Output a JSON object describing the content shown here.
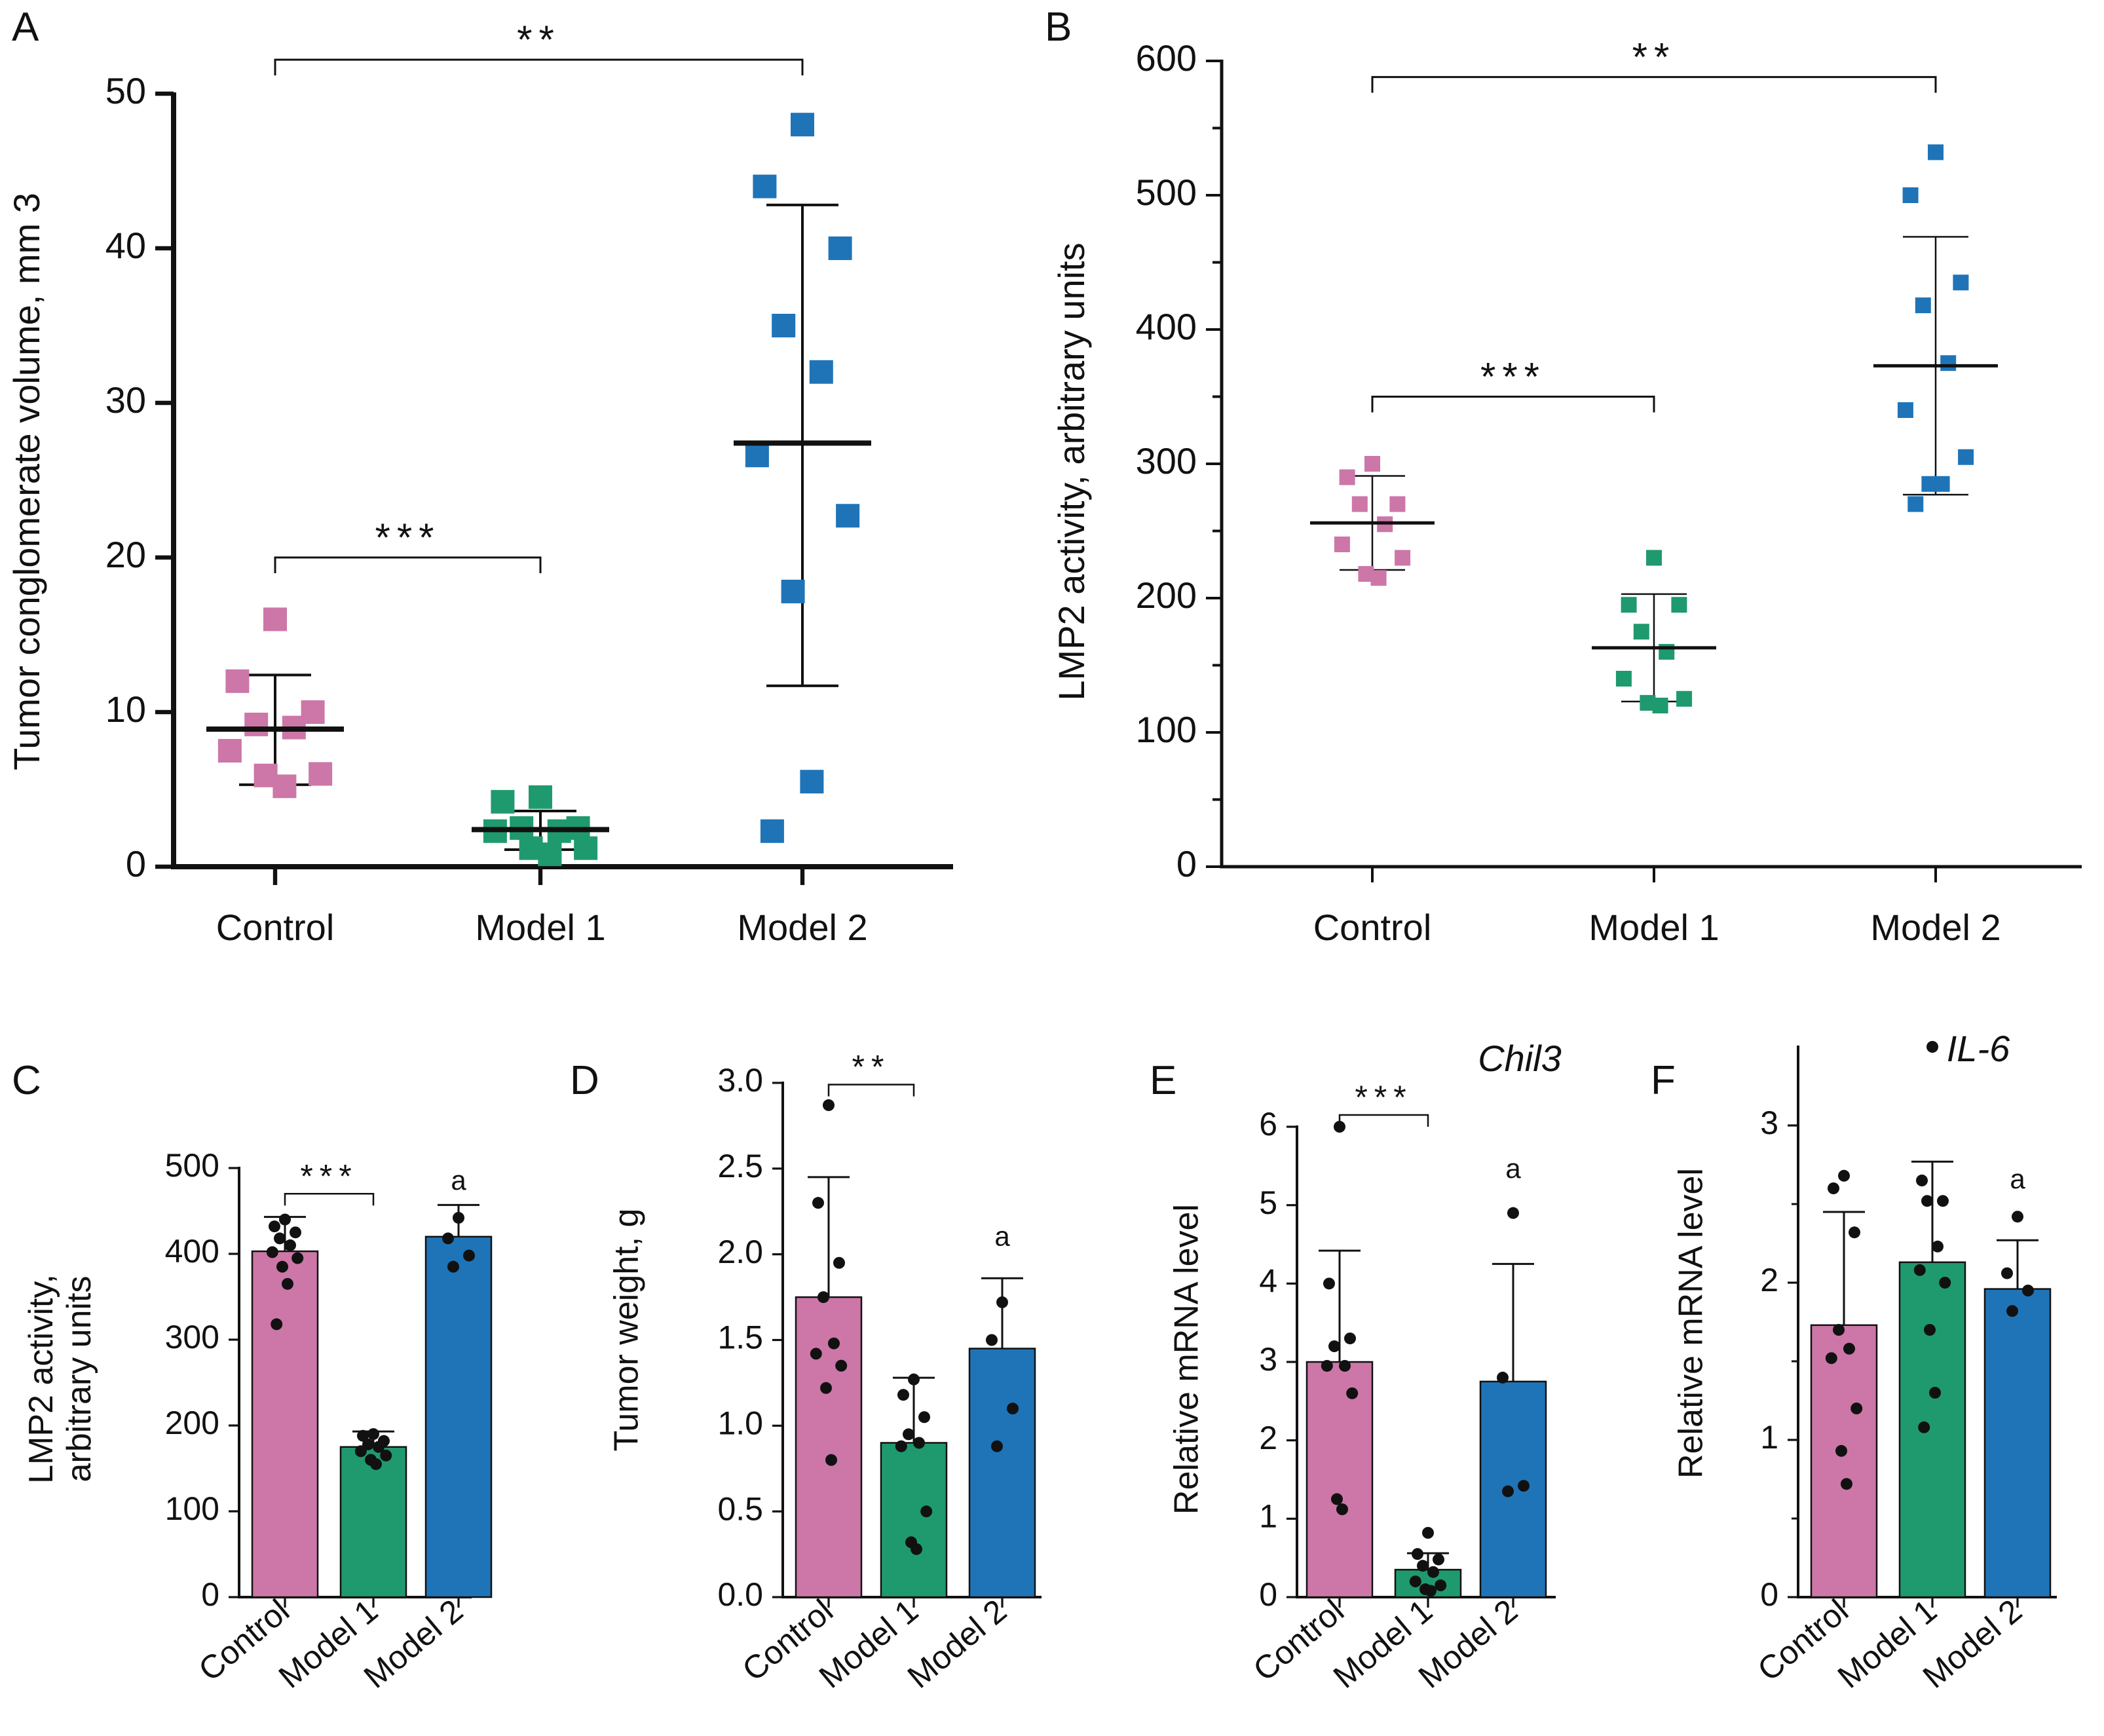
{
  "figure": {
    "colors": {
      "control": "#cc77a8",
      "model1": "#1f9a6e",
      "model2": "#1f74b8",
      "axis": "#111111"
    }
  },
  "chart_data": [
    {
      "id": "A",
      "panel_label": "A",
      "type": "scatter",
      "ylabel": "Tumor conglomerate volume, mm 3",
      "categories": [
        "Control",
        "Model 1",
        "Model 2"
      ],
      "ylim": [
        0,
        50
      ],
      "yticks": [
        0,
        10,
        20,
        30,
        40,
        50
      ],
      "ytick_labels": [
        "0",
        "10",
        "20",
        "30",
        "40",
        "50"
      ],
      "series": [
        {
          "name": "Control",
          "points": [
            16,
            12,
            10,
            9.2,
            9,
            7.5,
            6,
            5.9,
            5.2
          ],
          "mean": 8.9,
          "err_low": 5.3,
          "err_high": 12.4
        },
        {
          "name": "Model 1",
          "points": [
            4.5,
            4.2,
            2.5,
            2.5,
            2.3,
            2.3,
            1.2,
            1.2,
            0.8
          ],
          "mean": 2.4,
          "err_low": 1.1,
          "err_high": 3.6
        },
        {
          "name": "Model 2",
          "points": [
            48,
            44,
            40,
            35,
            32,
            26.6,
            22.7,
            17.8,
            5.5,
            2.3
          ],
          "mean": 27.4,
          "err_low": 11.7,
          "err_high": 42.8
        }
      ],
      "brackets": [
        {
          "from": 0,
          "to": 2,
          "level": 52.2,
          "label": "**"
        },
        {
          "from": 0,
          "to": 1,
          "level": 20,
          "label": "***"
        }
      ]
    },
    {
      "id": "B",
      "panel_label": "B",
      "type": "scatter",
      "ylabel": "LMP2 activity, arbitrary units",
      "categories": [
        "Control",
        "Model 1",
        "Model 2"
      ],
      "ylim": [
        0,
        600
      ],
      "yticks": [
        0,
        100,
        200,
        300,
        400,
        500,
        600
      ],
      "ytick_labels": [
        "0",
        "100",
        "200",
        "300",
        "400",
        "500",
        "600"
      ],
      "series": [
        {
          "name": "Control",
          "points": [
            300,
            290,
            270,
            270,
            255,
            240,
            230,
            218,
            215
          ],
          "mean": 256,
          "err_low": 221,
          "err_high": 291
        },
        {
          "name": "Model 1",
          "points": [
            230,
            195,
            195,
            175,
            160,
            140,
            125,
            122,
            120
          ],
          "mean": 163,
          "err_low": 123,
          "err_high": 203
        },
        {
          "name": "Model 2",
          "points": [
            532,
            500,
            435,
            418,
            375,
            340,
            305,
            285,
            285,
            270
          ],
          "mean": 373,
          "err_low": 277,
          "err_high": 469
        }
      ],
      "brackets": [
        {
          "from": 0,
          "to": 2,
          "level": 588,
          "label": "**"
        },
        {
          "from": 0,
          "to": 1,
          "level": 350,
          "label": "***"
        }
      ]
    },
    {
      "id": "C",
      "panel_label": "C",
      "type": "bar",
      "ylabel": "LMP2 activity,|arbitrary units",
      "categories": [
        "Control",
        "Model 1",
        "Model 2"
      ],
      "ylim": [
        0,
        500
      ],
      "yticks": [
        0,
        100,
        200,
        300,
        400,
        500
      ],
      "ytick_labels": [
        "0",
        "100",
        "200",
        "300",
        "400",
        "500"
      ],
      "values": [
        403,
        175,
        420
      ],
      "err_high": [
        443,
        193,
        457
      ],
      "points": [
        [
          440,
          432,
          425,
          418,
          410,
          402,
          395,
          385,
          365,
          318
        ],
        [
          190,
          188,
          182,
          178,
          175,
          170,
          165,
          160,
          155
        ],
        [
          442,
          418,
          398,
          385
        ]
      ],
      "annotations": [
        {
          "category": 2,
          "y": 475,
          "text": "a"
        }
      ],
      "brackets": [
        {
          "from": 0,
          "to": 1,
          "level": 470,
          "label": "***"
        }
      ]
    },
    {
      "id": "D",
      "panel_label": "D",
      "type": "bar",
      "ylabel": "Tumor weight, g",
      "categories": [
        "Control",
        "Model 1",
        "Model 2"
      ],
      "ylim": [
        0,
        3.0
      ],
      "yticks": [
        0,
        0.5,
        1.0,
        1.5,
        2.0,
        2.5,
        3.0
      ],
      "ytick_labels": [
        "0.0",
        "0.5",
        "1.0",
        "1.5",
        "2.0",
        "2.5",
        "3.0"
      ],
      "values": [
        1.75,
        0.9,
        1.45
      ],
      "err_high": [
        2.45,
        1.28,
        1.86
      ],
      "points": [
        [
          2.87,
          2.3,
          1.95,
          1.75,
          1.48,
          1.42,
          1.35,
          1.22,
          0.8
        ],
        [
          1.27,
          1.18,
          1.05,
          0.95,
          0.9,
          0.88,
          0.5,
          0.32,
          0.28
        ],
        [
          1.72,
          1.5,
          1.1,
          0.88
        ]
      ],
      "annotations": [
        {
          "category": 2,
          "y": 2.05,
          "text": "a"
        }
      ],
      "brackets": [
        {
          "from": 0,
          "to": 1,
          "level": 2.99,
          "label": "**"
        }
      ]
    },
    {
      "id": "E",
      "panel_label": "E",
      "type": "bar",
      "ylabel": "Relative mRNA level",
      "gene": "Chil3",
      "categories": [
        "Control",
        "Model 1",
        "Model 2"
      ],
      "ylim": [
        0,
        6
      ],
      "yticks": [
        0,
        1,
        2,
        3,
        4,
        5,
        6
      ],
      "ytick_labels": [
        "0",
        "1",
        "2",
        "3",
        "4",
        "5",
        "6"
      ],
      "values": [
        3.0,
        0.35,
        2.75
      ],
      "err_high": [
        4.42,
        0.56,
        4.25
      ],
      "points": [
        [
          6.0,
          4.0,
          3.3,
          3.2,
          2.95,
          2.95,
          2.6,
          1.25,
          1.12
        ],
        [
          0.82,
          0.55,
          0.48,
          0.4,
          0.32,
          0.2,
          0.15,
          0.1,
          0.08
        ],
        [
          4.9,
          2.8,
          1.42,
          1.35
        ]
      ],
      "annotations": [
        {
          "category": 2,
          "y": 5.35,
          "text": "a"
        }
      ],
      "brackets": [
        {
          "from": 0,
          "to": 1,
          "level": 6.15,
          "label": "***"
        }
      ]
    },
    {
      "id": "F",
      "panel_label": "F",
      "type": "bar",
      "ylabel": "Relative mRNA level",
      "gene": "IL-6",
      "categories": [
        "Control",
        "Model 1",
        "Model 2"
      ],
      "ylim": [
        0,
        3.5
      ],
      "yticks": [
        0,
        1,
        2,
        3
      ],
      "ytick_labels": [
        "0",
        "1",
        "2",
        "3"
      ],
      "values": [
        1.73,
        2.13,
        1.96
      ],
      "err_high": [
        2.45,
        2.77,
        2.27
      ],
      "points": [
        [
          2.68,
          2.6,
          2.32,
          1.7,
          1.58,
          1.52,
          1.2,
          0.93,
          0.72
        ],
        [
          3.5,
          2.65,
          2.52,
          2.52,
          2.23,
          2.08,
          2.0,
          1.7,
          1.3,
          1.08
        ],
        [
          2.42,
          2.06,
          1.95,
          1.82
        ]
      ],
      "annotations": [
        {
          "category": 2,
          "y": 2.6,
          "text": "a"
        }
      ],
      "brackets": []
    }
  ]
}
